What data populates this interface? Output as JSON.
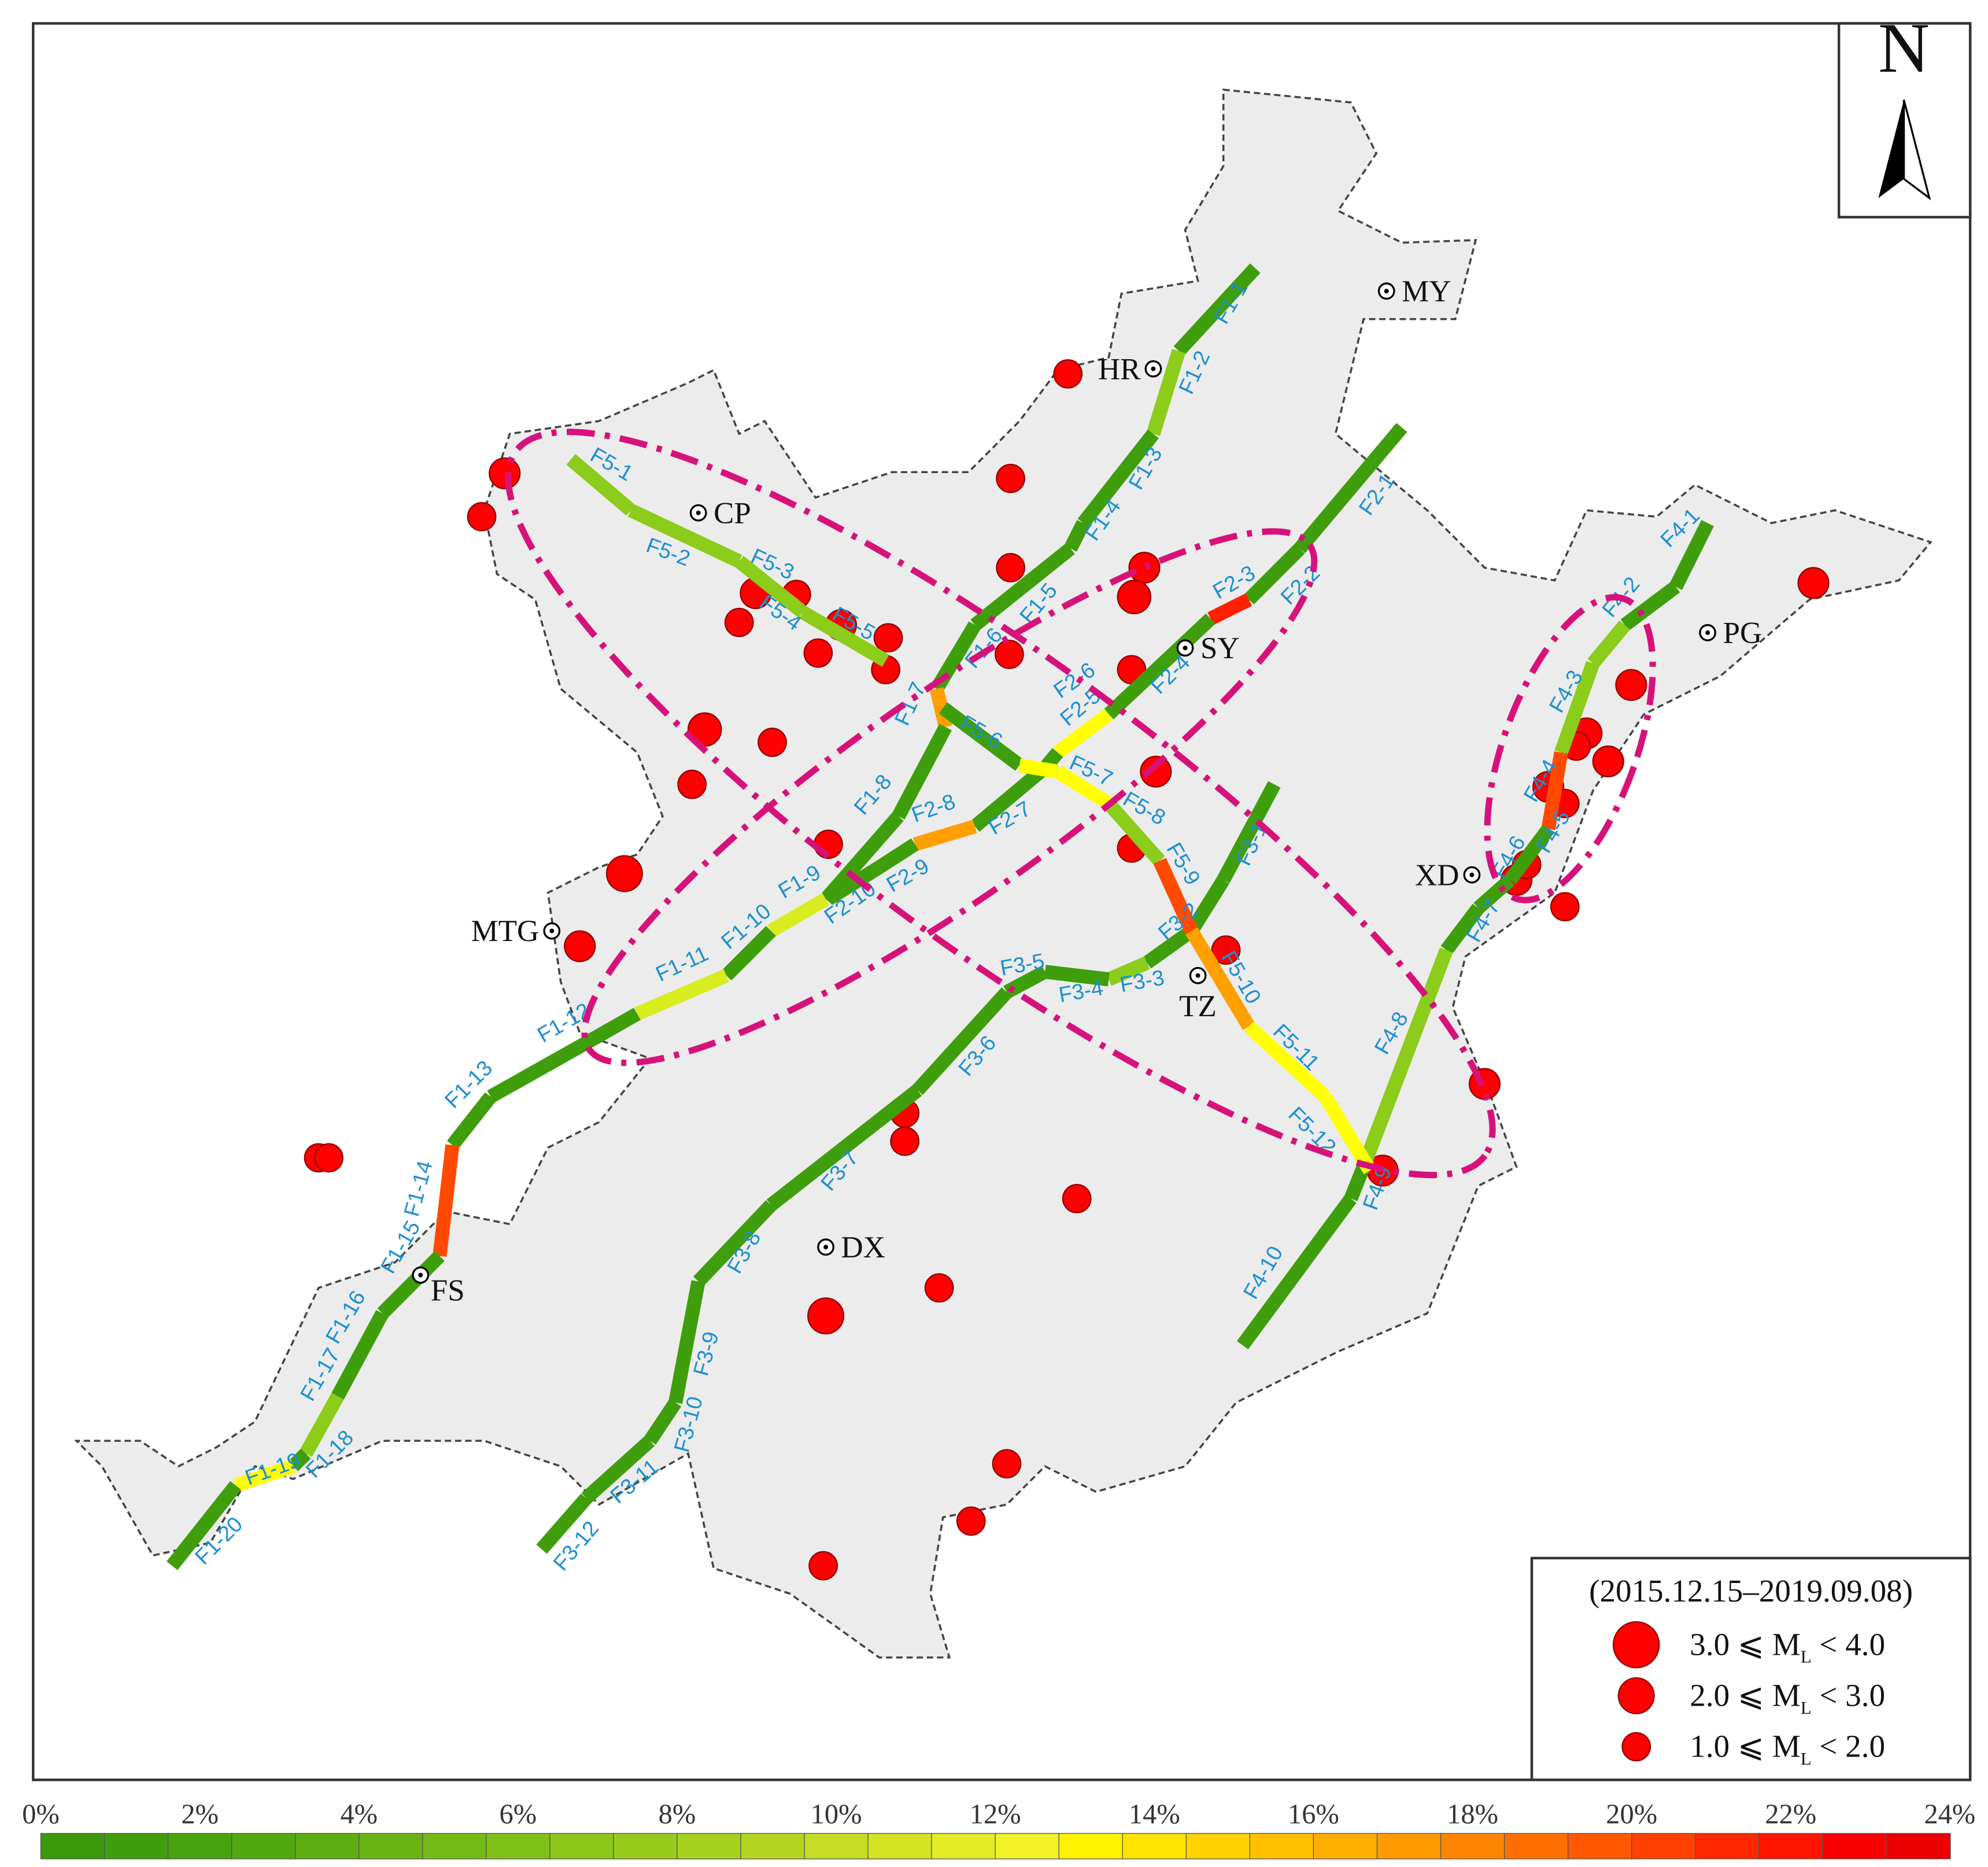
{
  "north_label": "N",
  "legend": {
    "period": "(2015.12.15–2019.09.08)",
    "items": [
      {
        "text": "3.0 ⩽ M",
        "sub": "L",
        "rest": " < 4.0"
      },
      {
        "text": "2.0 ⩽ M",
        "sub": "L",
        "rest": " < 3.0"
      },
      {
        "text": "1.0 ⩽ M",
        "sub": "L",
        "rest": " < 2.0"
      }
    ]
  },
  "colorbar": {
    "tick_labels": [
      "0%",
      "2%",
      "4%",
      "6%",
      "8%",
      "10%",
      "12%",
      "14%",
      "16%",
      "18%",
      "20%",
      "22%",
      "24%"
    ],
    "colors": [
      "#3a9a0a",
      "#3f9e0c",
      "#48a30e",
      "#52a810",
      "#5cae12",
      "#68b414",
      "#74ba16",
      "#80c018",
      "#8cc61a",
      "#98cb1c",
      "#a6d11e",
      "#b4d620",
      "#c4dc22",
      "#d4e424",
      "#e4ec26",
      "#f2f228",
      "#fff200",
      "#ffe400",
      "#ffd300",
      "#ffc100",
      "#ffae00",
      "#ff9a00",
      "#ff8500",
      "#ff6f00",
      "#ff5800",
      "#ff4000",
      "#ff2800",
      "#ff1400",
      "#f80000",
      "#ee0000"
    ]
  },
  "cities": [
    {
      "name": "MY",
      "label": "MY"
    },
    {
      "name": "HR",
      "label": "HR"
    },
    {
      "name": "CP",
      "label": "CP"
    },
    {
      "name": "SY",
      "label": "SY"
    },
    {
      "name": "PG",
      "label": "PG"
    },
    {
      "name": "XD",
      "label": "XD"
    },
    {
      "name": "MTG",
      "label": "MTG"
    },
    {
      "name": "TZ",
      "label": "TZ"
    },
    {
      "name": "FS",
      "label": "FS"
    },
    {
      "name": "DX",
      "label": "DX"
    }
  ],
  "segment_labels": [
    "F1-1",
    "F1-2",
    "F1-3",
    "F1-4",
    "F1-5",
    "F1-6",
    "F1-7",
    "F1-8",
    "F1-9",
    "F1-10",
    "F1-11",
    "F1-12",
    "F1-13",
    "F1-14",
    "F1-15",
    "F1-16",
    "F1-17",
    "F1-18",
    "F1-19",
    "F1-20",
    "F2-1",
    "F2-2",
    "F2-3",
    "F2-4",
    "F2-5",
    "F2-6",
    "F2-7",
    "F2-8",
    "F2-9",
    "F2-10",
    "F3-1",
    "F3-2",
    "F3-3",
    "F3-4",
    "F3-5",
    "F3-6",
    "F3-7",
    "F3-8",
    "F3-9",
    "F3-10",
    "F3-11",
    "F3-12",
    "F4-1",
    "F4-2",
    "F4-3",
    "F4-4",
    "F4-5",
    "F4-6",
    "F4-7",
    "F4-8",
    "F4-9",
    "F4-10",
    "F5-1",
    "F5-2",
    "F5-3",
    "F5-4",
    "F5-5",
    "F5-6",
    "F5-7",
    "F5-8",
    "F5-9",
    "F5-10",
    "F5-11",
    "F5-12"
  ],
  "colors": {
    "earthquake": "#ff0000",
    "ellipse": "#d6127a",
    "region_fill": "#ececec",
    "label": "#1b8fd2"
  }
}
